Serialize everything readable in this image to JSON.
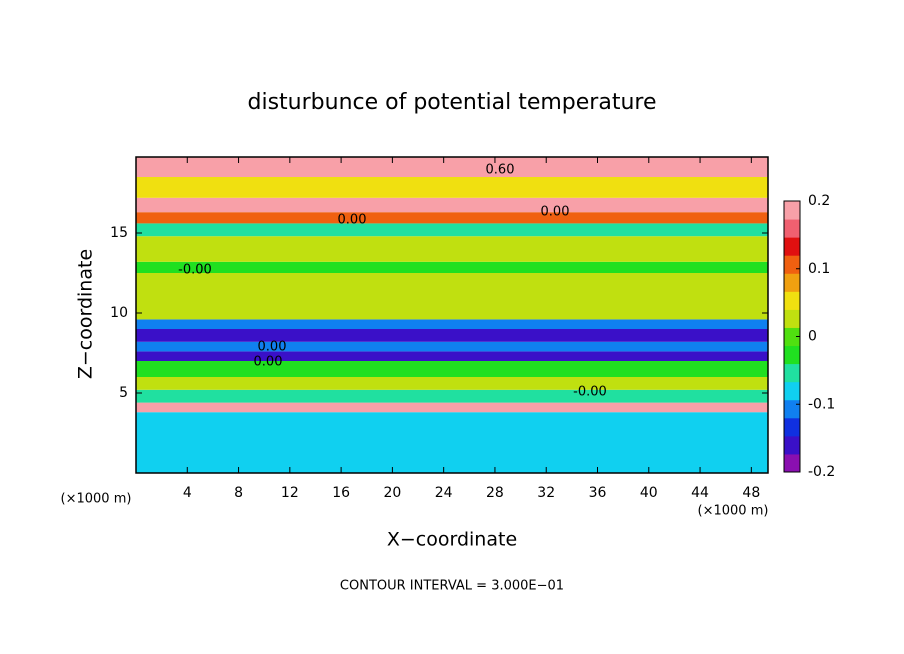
{
  "chart_data": {
    "type": "heatmap",
    "title": "disturbunce of potential temperature",
    "x_label": "X−coordinate",
    "y_label": "Z−coordinate",
    "x_unit": "(×1000 m)",
    "y_unit": "(×1000 m)",
    "footnote": "CONTOUR INTERVAL = 3.000E−01",
    "xlim": [
      0,
      49.3
    ],
    "ylim": [
      0,
      19.75
    ],
    "xticks": [
      4,
      8,
      12,
      16,
      20,
      24,
      28,
      32,
      36,
      40,
      44,
      48
    ],
    "yticks": [
      5,
      10,
      15
    ],
    "z_edges": [
      0,
      3.8,
      4.4,
      5.2,
      6,
      7,
      7.6,
      8.2,
      9,
      9.6,
      11,
      12.5,
      13.2,
      14.8,
      15.6,
      16.3,
      17.2,
      18.5,
      19.75
    ],
    "values": [
      -0.08,
      0.2,
      -0.05,
      0.02,
      -0.03,
      -0.15,
      -0.1,
      -0.16,
      -0.12,
      0.02,
      0.03,
      -0.02,
      0.02,
      -0.04,
      0.12,
      0.2,
      0.05,
      0.2
    ],
    "colorbar_lim": [
      -0.2,
      0.2
    ],
    "colorbar_ticks": [
      0.2,
      0.1,
      0,
      -0.1,
      -0.2
    ],
    "colormap": [
      "#8a0fb0",
      "#3a10c8",
      "#1030e0",
      "#1080f0",
      "#10d0f0",
      "#20e0a0",
      "#20e020",
      "#50e010",
      "#c0e010",
      "#f0e010",
      "#f0a010",
      "#f06010",
      "#e01010",
      "#f06070",
      "#f8a0a8"
    ],
    "contour_labels": [
      "0.60",
      "0.00",
      "0.00",
      "-0.00",
      "0.00",
      "0.00",
      "-0.00"
    ]
  }
}
